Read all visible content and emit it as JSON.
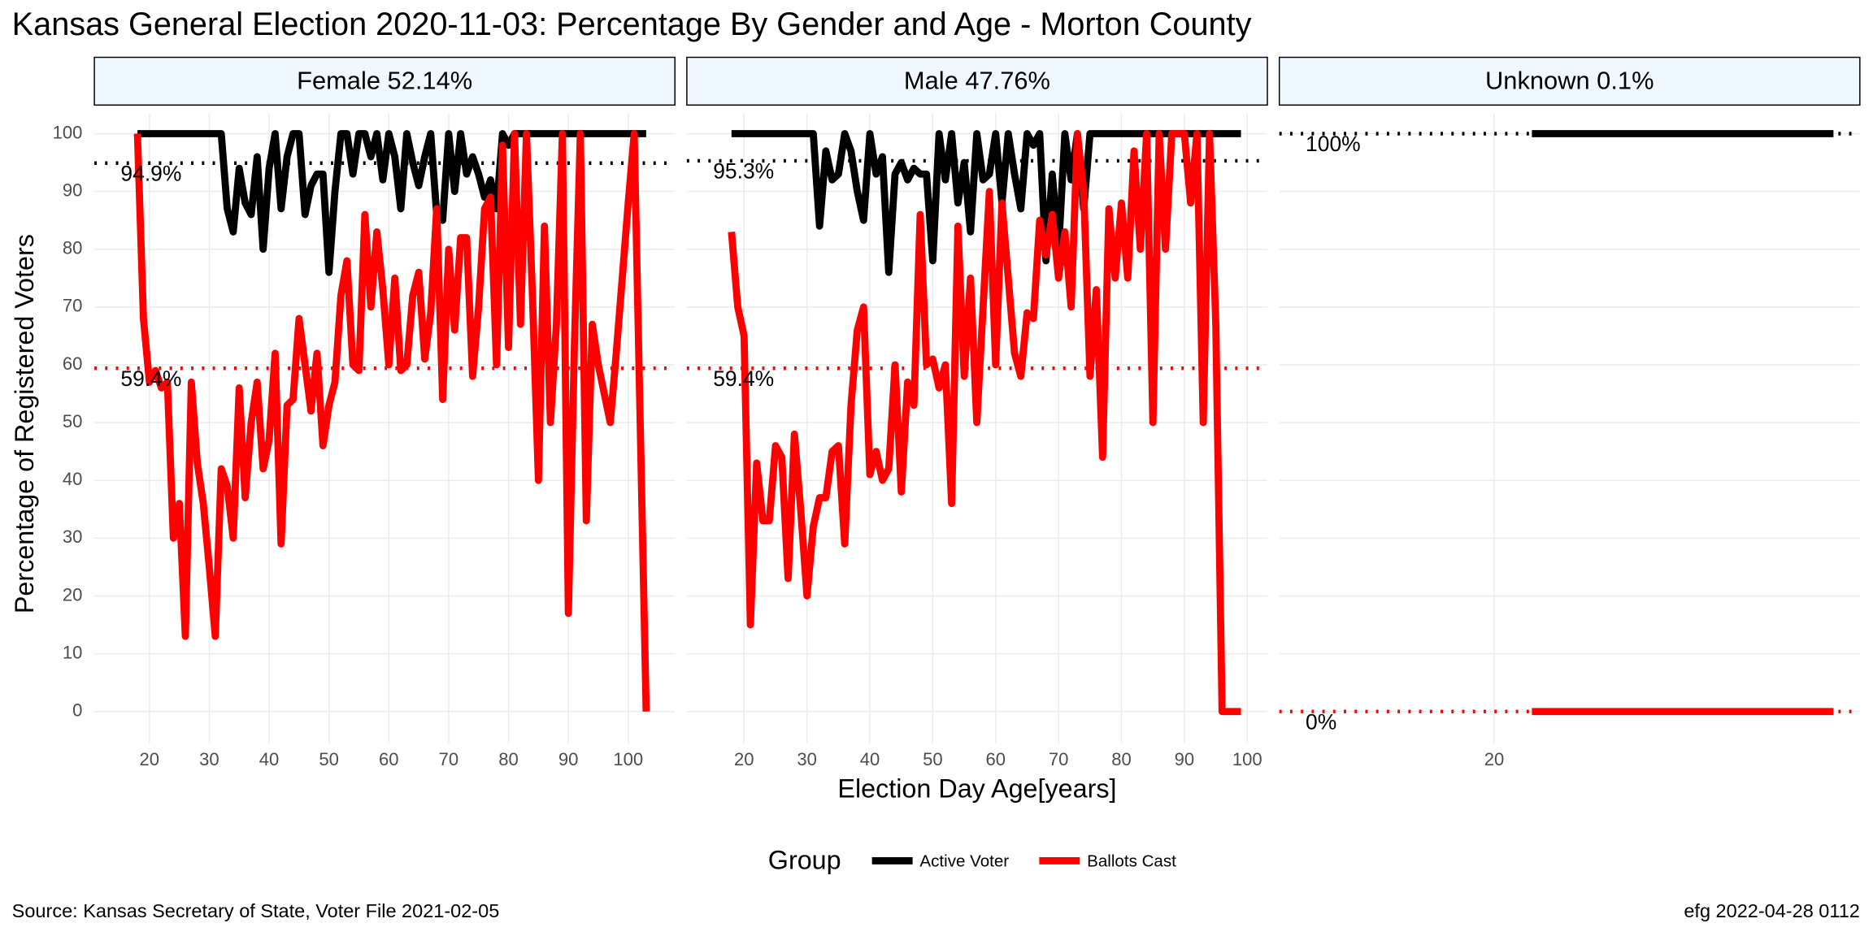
{
  "figure": {
    "title": "Kansas General Election 2020-11-03:  Percentage By Gender and Age - Morton County",
    "x_label": "Election Day Age[years]",
    "y_label": "Percentage of Registered Voters",
    "legend_title": "Group",
    "source": "Source:  Kansas Secretary of State, Voter File  2021-02-05",
    "footer": "efg 2022-04-28 0112"
  },
  "chart_data": [
    {
      "type": "line",
      "title": "Female 52.14%",
      "xlim": [
        10.8,
        107.8
      ],
      "ylim": [
        -5.5,
        103.5
      ],
      "xticks": [
        20,
        30,
        40,
        50,
        60,
        70,
        80,
        90,
        100
      ],
      "yticks": [
        0,
        10,
        20,
        30,
        40,
        50,
        60,
        70,
        80,
        90,
        100
      ],
      "grid": true,
      "x": [
        18,
        19,
        20,
        21,
        22,
        23,
        24,
        25,
        26,
        27,
        28,
        29,
        30,
        31,
        32,
        33,
        34,
        35,
        36,
        37,
        38,
        39,
        40,
        41,
        42,
        43,
        44,
        45,
        46,
        47,
        48,
        49,
        50,
        51,
        52,
        53,
        54,
        55,
        56,
        57,
        58,
        59,
        60,
        61,
        62,
        63,
        64,
        65,
        66,
        67,
        68,
        69,
        70,
        71,
        72,
        73,
        74,
        75,
        76,
        77,
        78,
        79,
        80,
        81,
        82,
        83,
        84,
        85,
        86,
        87,
        88,
        89,
        90,
        91,
        92,
        93,
        94,
        95,
        96,
        97,
        98,
        99,
        100,
        101,
        102,
        103
      ],
      "series": [
        {
          "name": "Active Voter",
          "color": "#000000",
          "values": [
            100,
            100,
            100,
            100,
            100,
            100,
            100,
            100,
            100,
            100,
            100,
            100,
            100,
            100,
            100,
            87,
            83,
            94,
            88,
            86,
            96,
            80,
            94,
            100,
            87,
            96,
            100,
            100,
            86,
            91,
            93,
            93,
            76,
            90,
            100,
            100,
            93,
            100,
            100,
            96,
            100,
            92,
            100,
            96,
            87,
            100,
            95,
            91,
            96,
            100,
            86,
            85,
            100,
            90,
            100,
            93,
            96,
            93,
            89,
            92,
            87,
            100,
            98,
            100,
            100,
            100,
            100,
            100,
            100,
            100,
            100,
            100,
            100,
            100,
            100,
            100,
            100,
            100,
            100,
            100,
            100,
            100,
            100,
            100,
            100,
            100
          ]
        },
        {
          "name": "Ballots Cast",
          "color": "#ff0000",
          "values": [
            100,
            68,
            57,
            59,
            56,
            57,
            30,
            36,
            13,
            57,
            43,
            36,
            25,
            13,
            42,
            39,
            30,
            56,
            37,
            50,
            57,
            42,
            47,
            62,
            29,
            53,
            54,
            68,
            60,
            52,
            62,
            46,
            53,
            57,
            72,
            78,
            60,
            59,
            86,
            70,
            83,
            73,
            60,
            75,
            59,
            60,
            72,
            76,
            61,
            69,
            87,
            54,
            80,
            66,
            82,
            82,
            58,
            70,
            87,
            89,
            60,
            98,
            63,
            100,
            67,
            100,
            72,
            40,
            84,
            50,
            67,
            100,
            17,
            63,
            100,
            33,
            67,
            60,
            55,
            50,
            62,
            75,
            88,
            100,
            50,
            0
          ]
        }
      ],
      "reference_lines": [
        {
          "value": 94.9,
          "label": "94.9%",
          "color": "#000000"
        },
        {
          "value": 59.4,
          "label": "59.4%",
          "color": "#ff0000"
        }
      ]
    },
    {
      "type": "line",
      "title": "Male 47.76%",
      "xlim": [
        10.9,
        103.2
      ],
      "ylim": [
        -5.5,
        103.5
      ],
      "xticks": [
        20,
        30,
        40,
        50,
        60,
        70,
        80,
        90,
        100
      ],
      "yticks": [
        0,
        10,
        20,
        30,
        40,
        50,
        60,
        70,
        80,
        90,
        100
      ],
      "grid": true,
      "x": [
        18,
        19,
        20,
        21,
        22,
        23,
        24,
        25,
        26,
        27,
        28,
        29,
        30,
        31,
        32,
        33,
        34,
        35,
        36,
        37,
        38,
        39,
        40,
        41,
        42,
        43,
        44,
        45,
        46,
        47,
        48,
        49,
        50,
        51,
        52,
        53,
        54,
        55,
        56,
        57,
        58,
        59,
        60,
        61,
        62,
        63,
        64,
        65,
        66,
        67,
        68,
        69,
        70,
        71,
        72,
        73,
        74,
        75,
        76,
        77,
        78,
        79,
        80,
        81,
        82,
        83,
        84,
        85,
        86,
        87,
        88,
        89,
        90,
        91,
        92,
        93,
        94,
        95,
        96,
        97,
        98,
        99
      ],
      "series": [
        {
          "name": "Active Voter",
          "color": "#000000",
          "values": [
            100,
            100,
            100,
            100,
            100,
            100,
            100,
            100,
            100,
            100,
            100,
            100,
            100,
            100,
            84,
            97,
            92,
            93,
            100,
            97,
            90,
            85,
            100,
            93,
            96,
            76,
            93,
            95,
            92,
            94,
            93,
            93,
            78,
            100,
            92,
            100,
            88,
            95,
            83,
            100,
            92,
            93,
            100,
            88,
            100,
            93,
            87,
            100,
            98,
            100,
            78,
            93,
            80,
            100,
            92,
            100,
            87,
            100,
            100,
            100,
            100,
            100,
            100,
            100,
            100,
            100,
            100,
            100,
            100,
            100,
            100,
            100,
            100,
            100,
            100,
            100,
            100,
            100,
            100,
            100,
            100,
            100
          ]
        },
        {
          "name": "Ballots Cast",
          "color": "#ff0000",
          "values": [
            83,
            70,
            65,
            15,
            43,
            33,
            33,
            46,
            44,
            23,
            48,
            35,
            20,
            32,
            37,
            37,
            45,
            46,
            29,
            53,
            66,
            70,
            41,
            45,
            40,
            42,
            60,
            38,
            57,
            53,
            86,
            60,
            61,
            56,
            60,
            36,
            84,
            58,
            75,
            50,
            70,
            90,
            60,
            88,
            75,
            62,
            58,
            69,
            68,
            85,
            79,
            86,
            75,
            83,
            70,
            100,
            90,
            58,
            73,
            44,
            87,
            75,
            88,
            75,
            97,
            80,
            100,
            50,
            100,
            80,
            100,
            100,
            100,
            88,
            100,
            50,
            100,
            67,
            0,
            0,
            0,
            0
          ]
        }
      ],
      "reference_lines": [
        {
          "value": 95.3,
          "label": "95.3%",
          "color": "#000000"
        },
        {
          "value": 59.4,
          "label": "59.4%",
          "color": "#ff0000"
        }
      ]
    },
    {
      "type": "line",
      "title": "Unknown 0.1%",
      "xlim": [
        14.3,
        29.7
      ],
      "ylim": [
        -5.5,
        103.5
      ],
      "xticks": [
        20
      ],
      "yticks": [
        0,
        10,
        20,
        30,
        40,
        50,
        60,
        70,
        80,
        90,
        100
      ],
      "grid": true,
      "x": [
        21,
        29
      ],
      "series": [
        {
          "name": "Active Voter",
          "color": "#000000",
          "values": [
            100,
            100
          ]
        },
        {
          "name": "Ballots Cast",
          "color": "#ff0000",
          "values": [
            0,
            0
          ]
        }
      ],
      "reference_lines": [
        {
          "value": 100,
          "label": "100%",
          "color": "#000000"
        },
        {
          "value": 0,
          "label": "0%",
          "color": "#ff0000"
        }
      ]
    }
  ]
}
